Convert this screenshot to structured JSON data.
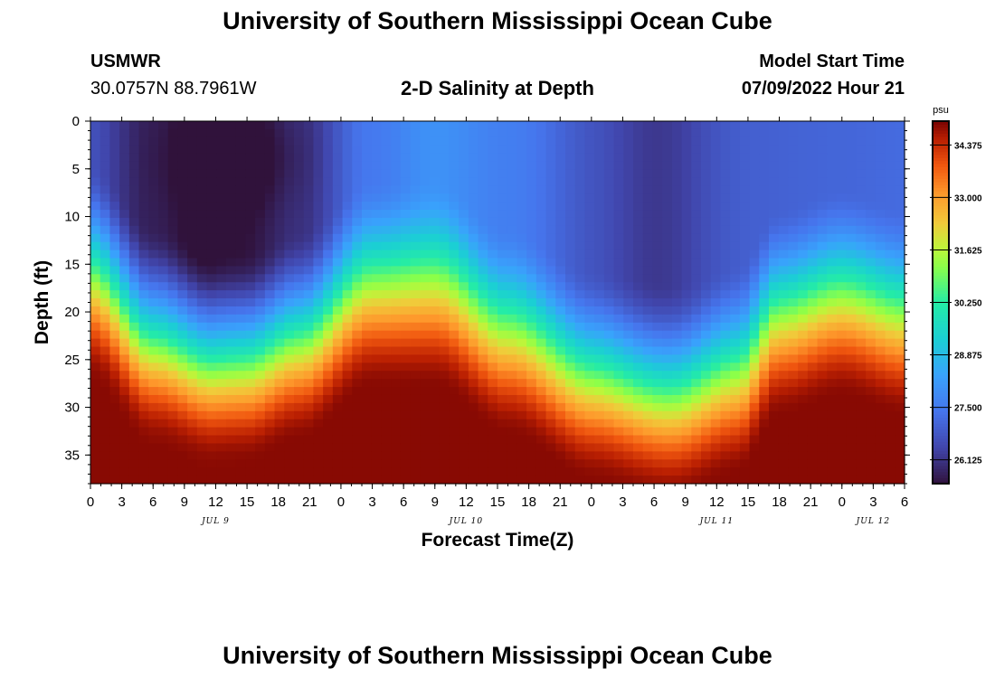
{
  "header": {
    "title": "University of Southern Mississippi Ocean Cube",
    "station": "USMWR",
    "coordinates": "30.0757N  88.7961W",
    "subtitle": "2-D Salinity at Depth",
    "model_start_label": "Model Start Time",
    "model_start_value": "07/09/2022 Hour 21"
  },
  "footer": {
    "title": "University of Southern Mississippi Ocean Cube"
  },
  "chart_data": {
    "type": "heatmap",
    "title": "2-D Salinity at Depth",
    "xlabel": "Forecast Time(Z)",
    "ylabel": "Depth (ft)",
    "x_range_hours": [
      0,
      78
    ],
    "x_tick_labels": [
      "0",
      "3",
      "6",
      "9",
      "12",
      "15",
      "18",
      "21",
      "0",
      "3",
      "6",
      "9",
      "12",
      "15",
      "18",
      "21",
      "0",
      "3",
      "6",
      "9",
      "12",
      "15",
      "18",
      "21",
      "0",
      "3",
      "6"
    ],
    "date_labels": [
      {
        "label": "JUL 9",
        "hour": 12
      },
      {
        "label": "JUL 10",
        "hour": 36
      },
      {
        "label": "JUL 11",
        "hour": 60
      },
      {
        "label": "JUL 12",
        "hour": 75
      }
    ],
    "y_range_ft": [
      0,
      38
    ],
    "y_ticks": [
      0,
      5,
      10,
      15,
      20,
      25,
      30,
      35
    ],
    "colorbar": {
      "unit": "psu",
      "min": 25.5,
      "max": 35.0,
      "tick_values": [
        34.375,
        33.0,
        31.625,
        30.25,
        28.875,
        27.5,
        26.125
      ],
      "tick_labels": [
        "34.375",
        "33.000",
        "31.625",
        "30.250",
        "28.875",
        "27.500",
        "26.125"
      ]
    },
    "surface_layer": {
      "comment": "approximate salinity (psu) at shallow depths by forecast hour",
      "hours": [
        0,
        6,
        12,
        15,
        20,
        27,
        33,
        40,
        48,
        56,
        64,
        72,
        78
      ],
      "psu": [
        27.1,
        26.6,
        25.8,
        25.7,
        26.1,
        27.5,
        28.0,
        27.6,
        26.9,
        26.8,
        27.0,
        27.1,
        27.2
      ]
    },
    "halocline_depth": {
      "comment": "approximate depth (ft) of the steep salinity gradient by forecast hour",
      "hours": [
        0,
        6,
        12,
        15,
        20,
        27,
        33,
        40,
        48,
        56,
        62,
        66,
        72,
        78
      ],
      "depth_ft": [
        15.5,
        22,
        24.5,
        24.5,
        22.5,
        17,
        17,
        22,
        26.5,
        28,
        26,
        20,
        18,
        20
      ]
    },
    "bottom_layer_psu": 34.9
  }
}
